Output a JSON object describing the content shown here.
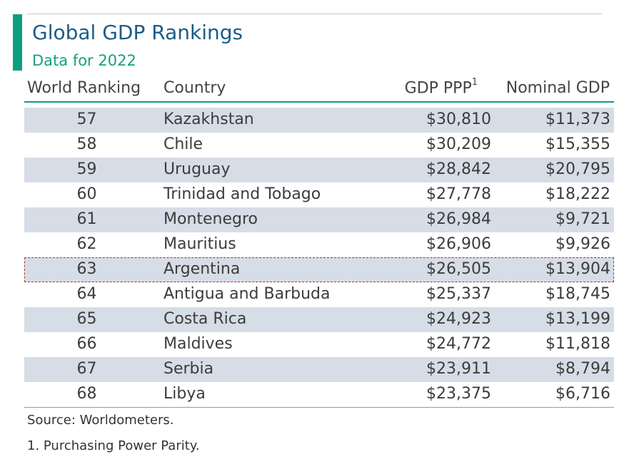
{
  "header": {
    "title": "Global GDP Rankings",
    "subtitle": "Data for 2022"
  },
  "chart_data": {
    "type": "table",
    "title": "Global GDP Rankings",
    "subtitle": "Data for 2022",
    "columns": {
      "rank": "World Ranking",
      "country": "Country",
      "ppp": "GDP PPP",
      "ppp_footnote_marker": "1",
      "nominal": "Nominal GDP"
    },
    "rows": [
      {
        "rank": "57",
        "country": "Kazakhstan",
        "ppp": "$30,810",
        "nominal": "$11,373"
      },
      {
        "rank": "58",
        "country": "Chile",
        "ppp": "$30,209",
        "nominal": "$15,355"
      },
      {
        "rank": "59",
        "country": "Uruguay",
        "ppp": "$28,842",
        "nominal": "$20,795"
      },
      {
        "rank": "60",
        "country": "Trinidad and Tobago",
        "ppp": "$27,778",
        "nominal": "$18,222"
      },
      {
        "rank": "61",
        "country": "Montenegro",
        "ppp": "$26,984",
        "nominal": "$9,721"
      },
      {
        "rank": "62",
        "country": "Mauritius",
        "ppp": "$26,906",
        "nominal": "$9,926"
      },
      {
        "rank": "63",
        "country": "Argentina",
        "ppp": "$26,505",
        "nominal": "$13,904"
      },
      {
        "rank": "64",
        "country": "Antigua and Barbuda",
        "ppp": "$25,337",
        "nominal": "$18,745"
      },
      {
        "rank": "65",
        "country": "Costa Rica",
        "ppp": "$24,923",
        "nominal": "$13,199"
      },
      {
        "rank": "66",
        "country": "Maldives",
        "ppp": "$24,772",
        "nominal": "$11,818"
      },
      {
        "rank": "67",
        "country": "Serbia",
        "ppp": "$23,911",
        "nominal": "$8,794"
      },
      {
        "rank": "68",
        "country": "Libya",
        "ppp": "$23,375",
        "nominal": "$6,716"
      }
    ],
    "highlighted_row": "Argentina",
    "row_shading": "alternating",
    "colors": {
      "accent": "#0e9e7e",
      "title": "#1d5c8a",
      "shaded_row": "#d6dde6",
      "highlight_outline": "#b03030"
    }
  },
  "footer": {
    "source": "Source: Worldometers.",
    "footnote": "1. Purchasing Power Parity."
  }
}
